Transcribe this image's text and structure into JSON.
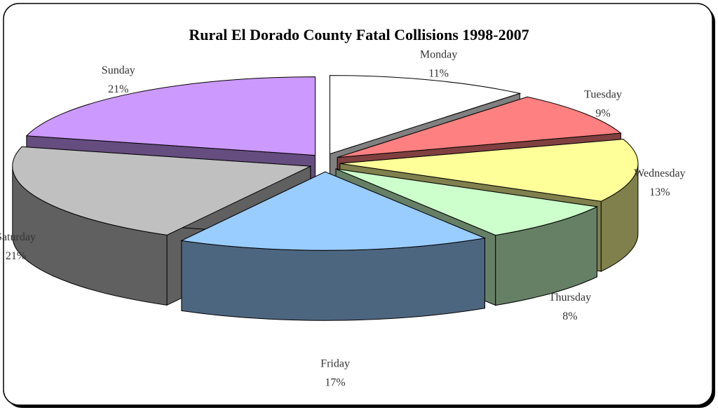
{
  "chart_data": {
    "type": "pie3d",
    "title": "Rural El Dorado County Fatal Collisions 1998-2007",
    "categories": [
      "Monday",
      "Tuesday",
      "Wednesday",
      "Thursday",
      "Friday",
      "Saturday",
      "Sunday"
    ],
    "values": [
      11,
      9,
      13,
      8,
      17,
      21,
      21
    ],
    "value_labels": [
      "11%",
      "9%",
      "13%",
      "8%",
      "17%",
      "21%",
      "21%"
    ],
    "colors": [
      "#ffffff",
      "#ff8080",
      "#ffff99",
      "#ccffcc",
      "#99ccff",
      "#c0c0c0",
      "#cc99ff"
    ]
  }
}
